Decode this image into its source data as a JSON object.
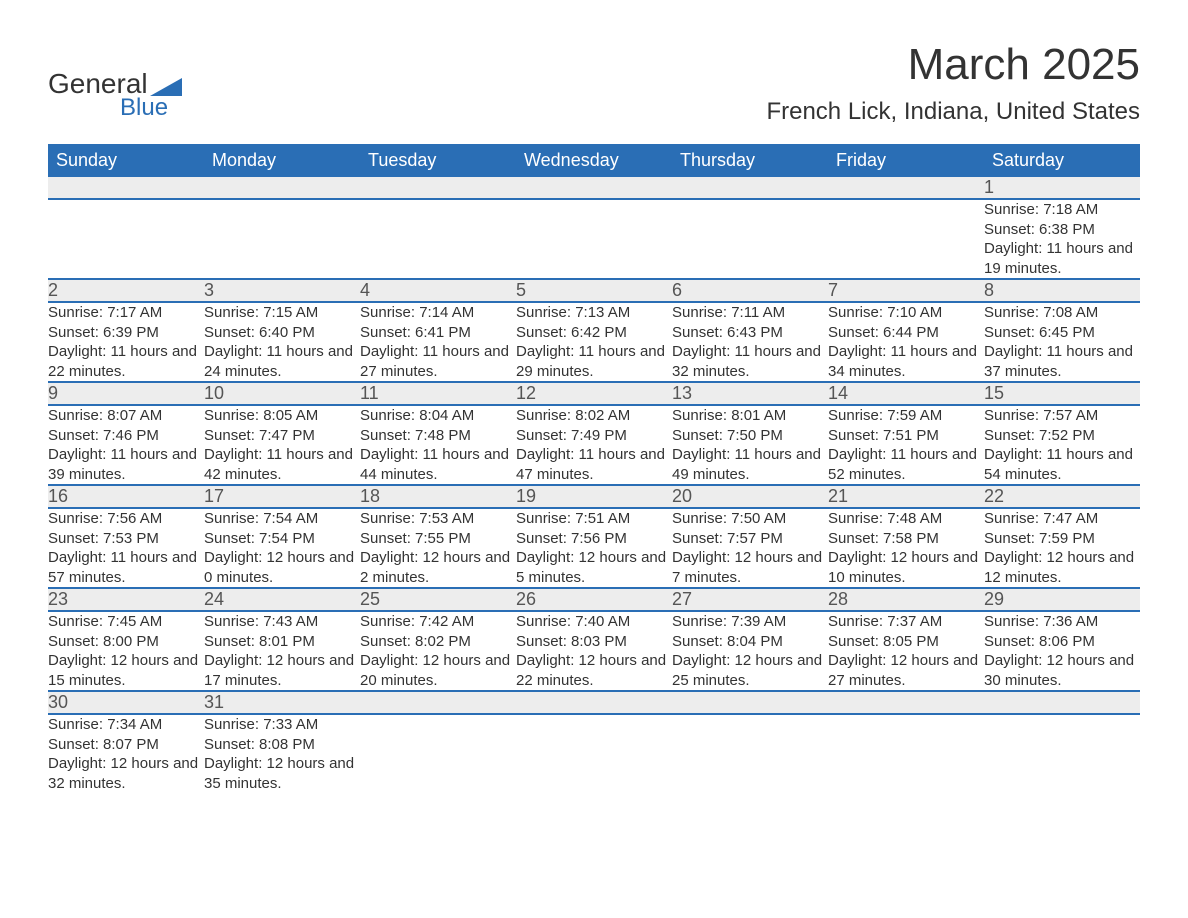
{
  "logo": {
    "text_general": "General",
    "text_blue": "Blue",
    "swoosh_color": "#2a6eb5"
  },
  "title": {
    "month": "March 2025",
    "location": "French Lick, Indiana, United States"
  },
  "colors": {
    "header_bg": "#2a6eb5",
    "header_text": "#ffffff",
    "daynum_bg": "#ededed",
    "daynum_text": "#555555",
    "body_text": "#333333",
    "page_bg": "#ffffff",
    "row_separator": "#2a6eb5"
  },
  "typography": {
    "title_month_fontsize": 44,
    "title_location_fontsize": 24,
    "weekday_header_fontsize": 18,
    "daynum_fontsize": 18,
    "detail_fontsize": 15,
    "font_family": "Arial, Helvetica, sans-serif"
  },
  "weekdays": [
    "Sunday",
    "Monday",
    "Tuesday",
    "Wednesday",
    "Thursday",
    "Friday",
    "Saturday"
  ],
  "weeks": [
    [
      null,
      null,
      null,
      null,
      null,
      null,
      {
        "day": "1",
        "sunrise": "Sunrise: 7:18 AM",
        "sunset": "Sunset: 6:38 PM",
        "daylight": "Daylight: 11 hours and 19 minutes."
      }
    ],
    [
      {
        "day": "2",
        "sunrise": "Sunrise: 7:17 AM",
        "sunset": "Sunset: 6:39 PM",
        "daylight": "Daylight: 11 hours and 22 minutes."
      },
      {
        "day": "3",
        "sunrise": "Sunrise: 7:15 AM",
        "sunset": "Sunset: 6:40 PM",
        "daylight": "Daylight: 11 hours and 24 minutes."
      },
      {
        "day": "4",
        "sunrise": "Sunrise: 7:14 AM",
        "sunset": "Sunset: 6:41 PM",
        "daylight": "Daylight: 11 hours and 27 minutes."
      },
      {
        "day": "5",
        "sunrise": "Sunrise: 7:13 AM",
        "sunset": "Sunset: 6:42 PM",
        "daylight": "Daylight: 11 hours and 29 minutes."
      },
      {
        "day": "6",
        "sunrise": "Sunrise: 7:11 AM",
        "sunset": "Sunset: 6:43 PM",
        "daylight": "Daylight: 11 hours and 32 minutes."
      },
      {
        "day": "7",
        "sunrise": "Sunrise: 7:10 AM",
        "sunset": "Sunset: 6:44 PM",
        "daylight": "Daylight: 11 hours and 34 minutes."
      },
      {
        "day": "8",
        "sunrise": "Sunrise: 7:08 AM",
        "sunset": "Sunset: 6:45 PM",
        "daylight": "Daylight: 11 hours and 37 minutes."
      }
    ],
    [
      {
        "day": "9",
        "sunrise": "Sunrise: 8:07 AM",
        "sunset": "Sunset: 7:46 PM",
        "daylight": "Daylight: 11 hours and 39 minutes."
      },
      {
        "day": "10",
        "sunrise": "Sunrise: 8:05 AM",
        "sunset": "Sunset: 7:47 PM",
        "daylight": "Daylight: 11 hours and 42 minutes."
      },
      {
        "day": "11",
        "sunrise": "Sunrise: 8:04 AM",
        "sunset": "Sunset: 7:48 PM",
        "daylight": "Daylight: 11 hours and 44 minutes."
      },
      {
        "day": "12",
        "sunrise": "Sunrise: 8:02 AM",
        "sunset": "Sunset: 7:49 PM",
        "daylight": "Daylight: 11 hours and 47 minutes."
      },
      {
        "day": "13",
        "sunrise": "Sunrise: 8:01 AM",
        "sunset": "Sunset: 7:50 PM",
        "daylight": "Daylight: 11 hours and 49 minutes."
      },
      {
        "day": "14",
        "sunrise": "Sunrise: 7:59 AM",
        "sunset": "Sunset: 7:51 PM",
        "daylight": "Daylight: 11 hours and 52 minutes."
      },
      {
        "day": "15",
        "sunrise": "Sunrise: 7:57 AM",
        "sunset": "Sunset: 7:52 PM",
        "daylight": "Daylight: 11 hours and 54 minutes."
      }
    ],
    [
      {
        "day": "16",
        "sunrise": "Sunrise: 7:56 AM",
        "sunset": "Sunset: 7:53 PM",
        "daylight": "Daylight: 11 hours and 57 minutes."
      },
      {
        "day": "17",
        "sunrise": "Sunrise: 7:54 AM",
        "sunset": "Sunset: 7:54 PM",
        "daylight": "Daylight: 12 hours and 0 minutes."
      },
      {
        "day": "18",
        "sunrise": "Sunrise: 7:53 AM",
        "sunset": "Sunset: 7:55 PM",
        "daylight": "Daylight: 12 hours and 2 minutes."
      },
      {
        "day": "19",
        "sunrise": "Sunrise: 7:51 AM",
        "sunset": "Sunset: 7:56 PM",
        "daylight": "Daylight: 12 hours and 5 minutes."
      },
      {
        "day": "20",
        "sunrise": "Sunrise: 7:50 AM",
        "sunset": "Sunset: 7:57 PM",
        "daylight": "Daylight: 12 hours and 7 minutes."
      },
      {
        "day": "21",
        "sunrise": "Sunrise: 7:48 AM",
        "sunset": "Sunset: 7:58 PM",
        "daylight": "Daylight: 12 hours and 10 minutes."
      },
      {
        "day": "22",
        "sunrise": "Sunrise: 7:47 AM",
        "sunset": "Sunset: 7:59 PM",
        "daylight": "Daylight: 12 hours and 12 minutes."
      }
    ],
    [
      {
        "day": "23",
        "sunrise": "Sunrise: 7:45 AM",
        "sunset": "Sunset: 8:00 PM",
        "daylight": "Daylight: 12 hours and 15 minutes."
      },
      {
        "day": "24",
        "sunrise": "Sunrise: 7:43 AM",
        "sunset": "Sunset: 8:01 PM",
        "daylight": "Daylight: 12 hours and 17 minutes."
      },
      {
        "day": "25",
        "sunrise": "Sunrise: 7:42 AM",
        "sunset": "Sunset: 8:02 PM",
        "daylight": "Daylight: 12 hours and 20 minutes."
      },
      {
        "day": "26",
        "sunrise": "Sunrise: 7:40 AM",
        "sunset": "Sunset: 8:03 PM",
        "daylight": "Daylight: 12 hours and 22 minutes."
      },
      {
        "day": "27",
        "sunrise": "Sunrise: 7:39 AM",
        "sunset": "Sunset: 8:04 PM",
        "daylight": "Daylight: 12 hours and 25 minutes."
      },
      {
        "day": "28",
        "sunrise": "Sunrise: 7:37 AM",
        "sunset": "Sunset: 8:05 PM",
        "daylight": "Daylight: 12 hours and 27 minutes."
      },
      {
        "day": "29",
        "sunrise": "Sunrise: 7:36 AM",
        "sunset": "Sunset: 8:06 PM",
        "daylight": "Daylight: 12 hours and 30 minutes."
      }
    ],
    [
      {
        "day": "30",
        "sunrise": "Sunrise: 7:34 AM",
        "sunset": "Sunset: 8:07 PM",
        "daylight": "Daylight: 12 hours and 32 minutes."
      },
      {
        "day": "31",
        "sunrise": "Sunrise: 7:33 AM",
        "sunset": "Sunset: 8:08 PM",
        "daylight": "Daylight: 12 hours and 35 minutes."
      },
      null,
      null,
      null,
      null,
      null
    ]
  ]
}
